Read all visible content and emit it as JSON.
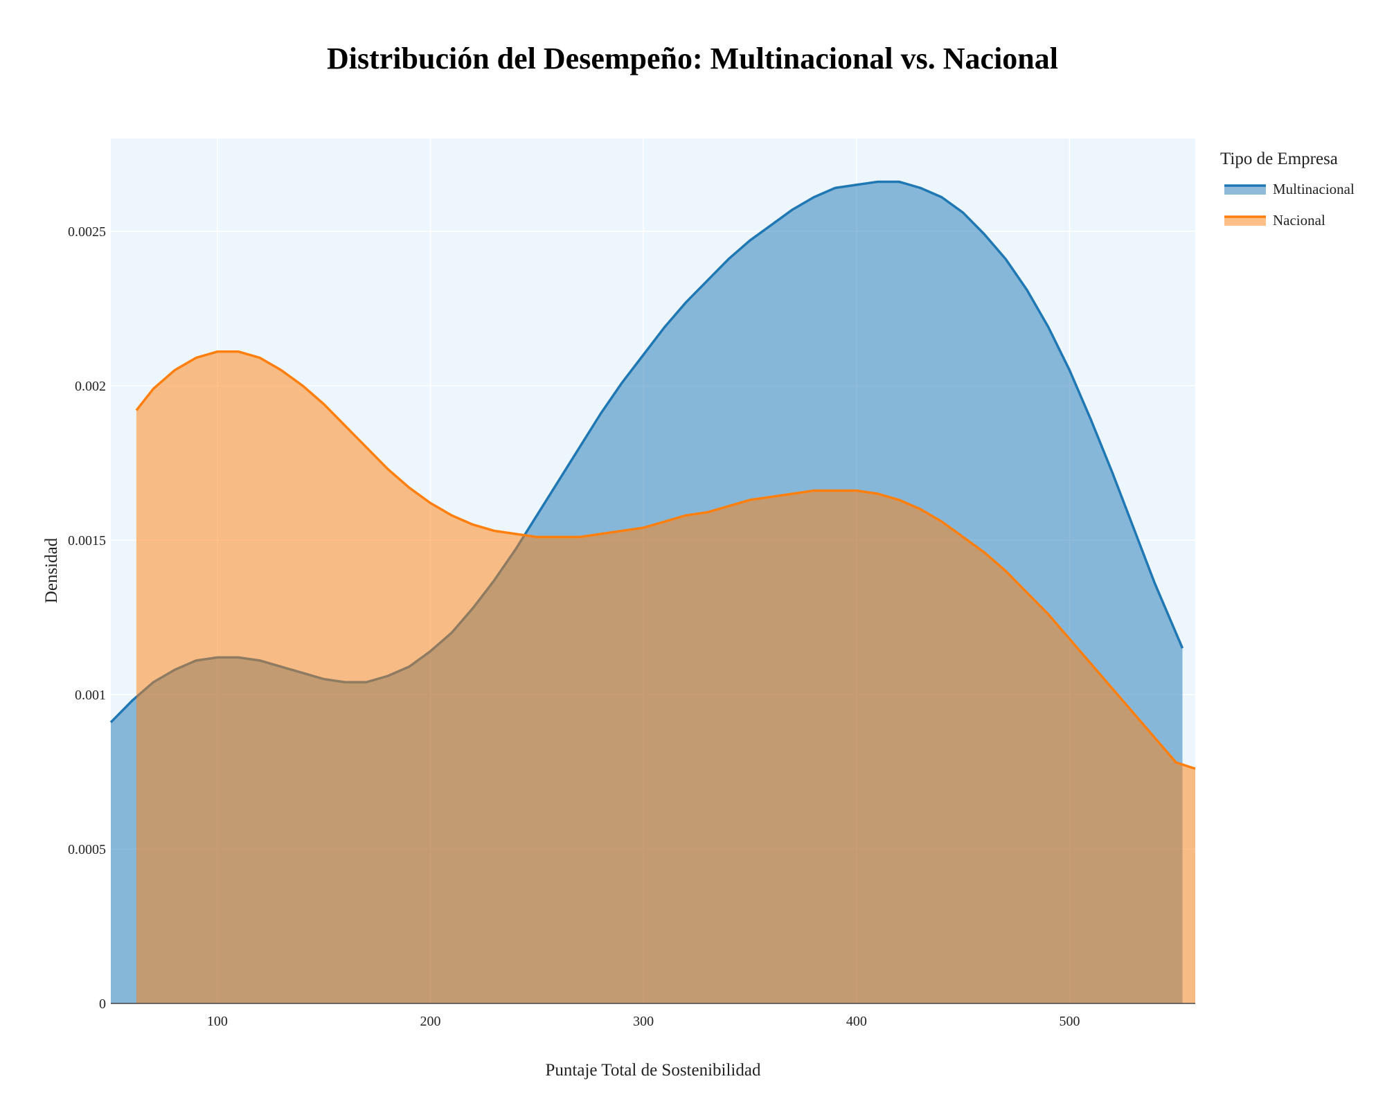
{
  "chart_data": {
    "type": "area",
    "title": "Distribución del Desempeño: Multinacional vs. Nacional",
    "xlabel": "Puntaje Total de Sostenibilidad",
    "ylabel": "Densidad",
    "xlim": [
      50,
      559
    ],
    "ylim": [
      0,
      0.0028
    ],
    "grid": true,
    "legend": {
      "title": "Tipo de Empresa",
      "placement": "top-right"
    },
    "x_ticks": [
      {
        "value": 100,
        "label": "100"
      },
      {
        "value": 200,
        "label": "200"
      },
      {
        "value": 300,
        "label": "300"
      },
      {
        "value": 400,
        "label": "400"
      },
      {
        "value": 500,
        "label": "500"
      }
    ],
    "y_ticks": [
      {
        "value": 0,
        "label": "0"
      },
      {
        "value": 0.0005,
        "label": "0.0005"
      },
      {
        "value": 0.001,
        "label": "0.001"
      },
      {
        "value": 0.0015,
        "label": "0.0015"
      },
      {
        "value": 0.002,
        "label": "0.002"
      },
      {
        "value": 0.0025,
        "label": "0.0025"
      }
    ],
    "series": [
      {
        "name": "Multinacional",
        "color": "#1f77b4",
        "x": [
          50,
          60,
          70,
          80,
          90,
          100,
          110,
          120,
          130,
          140,
          150,
          160,
          170,
          180,
          190,
          200,
          210,
          220,
          230,
          240,
          250,
          260,
          270,
          280,
          290,
          300,
          310,
          320,
          330,
          340,
          350,
          360,
          370,
          380,
          390,
          400,
          410,
          420,
          430,
          440,
          450,
          460,
          470,
          480,
          490,
          500,
          510,
          520,
          530,
          540,
          553
        ],
        "y": [
          0.00091,
          0.00098,
          0.00104,
          0.00108,
          0.00111,
          0.00112,
          0.00112,
          0.00111,
          0.00109,
          0.00107,
          0.00105,
          0.00104,
          0.00104,
          0.00106,
          0.00109,
          0.00114,
          0.0012,
          0.00128,
          0.00137,
          0.00147,
          0.00158,
          0.00169,
          0.0018,
          0.00191,
          0.00201,
          0.0021,
          0.00219,
          0.00227,
          0.00234,
          0.00241,
          0.00247,
          0.00252,
          0.00257,
          0.00261,
          0.00264,
          0.00265,
          0.00266,
          0.00266,
          0.00264,
          0.00261,
          0.00256,
          0.00249,
          0.00241,
          0.00231,
          0.00219,
          0.00205,
          0.00189,
          0.00172,
          0.00154,
          0.00136,
          0.00115
        ]
      },
      {
        "name": "Nacional",
        "color": "#ff7f0e",
        "x": [
          62,
          70,
          80,
          90,
          100,
          110,
          120,
          130,
          140,
          150,
          160,
          170,
          180,
          190,
          200,
          210,
          220,
          230,
          240,
          250,
          260,
          270,
          280,
          290,
          300,
          310,
          320,
          330,
          340,
          350,
          360,
          370,
          380,
          390,
          400,
          410,
          420,
          430,
          440,
          450,
          460,
          470,
          480,
          490,
          500,
          510,
          520,
          530,
          540,
          550,
          559
        ],
        "y": [
          0.00192,
          0.00199,
          0.00205,
          0.00209,
          0.00211,
          0.00211,
          0.00209,
          0.00205,
          0.002,
          0.00194,
          0.00187,
          0.0018,
          0.00173,
          0.00167,
          0.00162,
          0.00158,
          0.00155,
          0.00153,
          0.00152,
          0.00151,
          0.00151,
          0.00151,
          0.00152,
          0.00153,
          0.00154,
          0.00156,
          0.00158,
          0.00159,
          0.00161,
          0.00163,
          0.00164,
          0.00165,
          0.00166,
          0.00166,
          0.00166,
          0.00165,
          0.00163,
          0.0016,
          0.00156,
          0.00151,
          0.00146,
          0.0014,
          0.00133,
          0.00126,
          0.00118,
          0.0011,
          0.00102,
          0.00094,
          0.00086,
          0.00078,
          0.00076
        ]
      }
    ]
  }
}
